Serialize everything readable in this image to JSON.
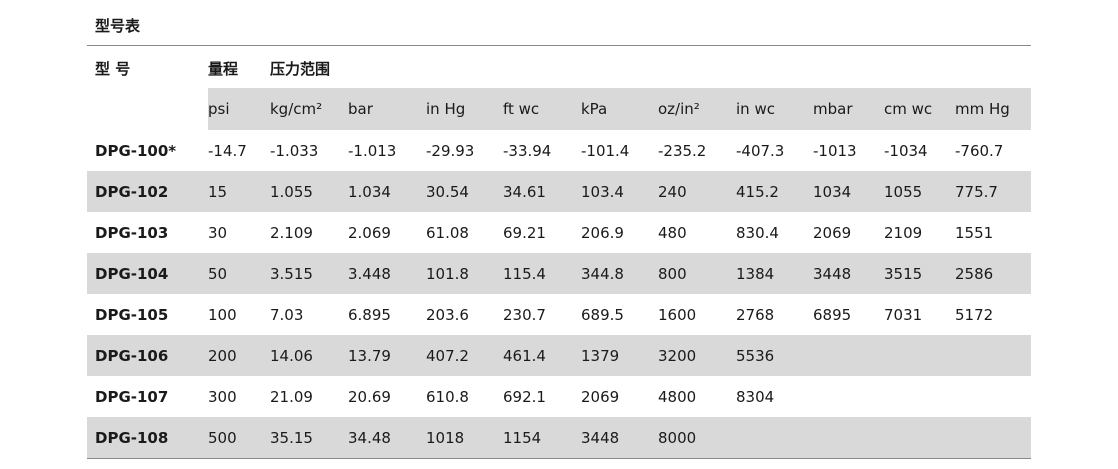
{
  "title": "型号表",
  "headers": {
    "model": "型 号",
    "range": "量程",
    "pressure_range": "压力范围"
  },
  "units": [
    "psi",
    "kg/cm²",
    "bar",
    "in Hg",
    "ft wc",
    "kPa",
    "oz/in²",
    "in wc",
    "mbar",
    "cm wc",
    "mm Hg"
  ],
  "rows": [
    {
      "model": "DPG-100*",
      "values": [
        "-14.7",
        "-1.033",
        "-1.013",
        "-29.93",
        "-33.94",
        "-101.4",
        "-235.2",
        "-407.3",
        "-1013",
        "-1034",
        "-760.7"
      ]
    },
    {
      "model": "DPG-102",
      "values": [
        "15",
        "1.055",
        "1.034",
        "30.54",
        "34.61",
        "103.4",
        "240",
        "415.2",
        "1034",
        "1055",
        "775.7"
      ]
    },
    {
      "model": "DPG-103",
      "values": [
        "30",
        "2.109",
        "2.069",
        "61.08",
        "69.21",
        "206.9",
        "480",
        "830.4",
        "2069",
        "2109",
        "1551"
      ]
    },
    {
      "model": "DPG-104",
      "values": [
        "50",
        "3.515",
        "3.448",
        "101.8",
        "115.4",
        "344.8",
        "800",
        "1384",
        "3448",
        "3515",
        "2586"
      ]
    },
    {
      "model": "DPG-105",
      "values": [
        "100",
        "7.03",
        "6.895",
        "203.6",
        "230.7",
        "689.5",
        "1600",
        "2768",
        "6895",
        "7031",
        "5172"
      ]
    },
    {
      "model": "DPG-106",
      "values": [
        "200",
        "14.06",
        "13.79",
        "407.2",
        "461.4",
        "1379",
        "3200",
        "5536",
        "",
        "",
        ""
      ]
    },
    {
      "model": "DPG-107",
      "values": [
        "300",
        "21.09",
        "20.69",
        "610.8",
        "692.1",
        "2069",
        "4800",
        "8304",
        "",
        "",
        ""
      ]
    },
    {
      "model": "DPG-108",
      "values": [
        "500",
        "35.15",
        "34.48",
        "1018",
        "1154",
        "3448",
        "8000",
        "",
        "",
        "",
        ""
      ]
    }
  ]
}
